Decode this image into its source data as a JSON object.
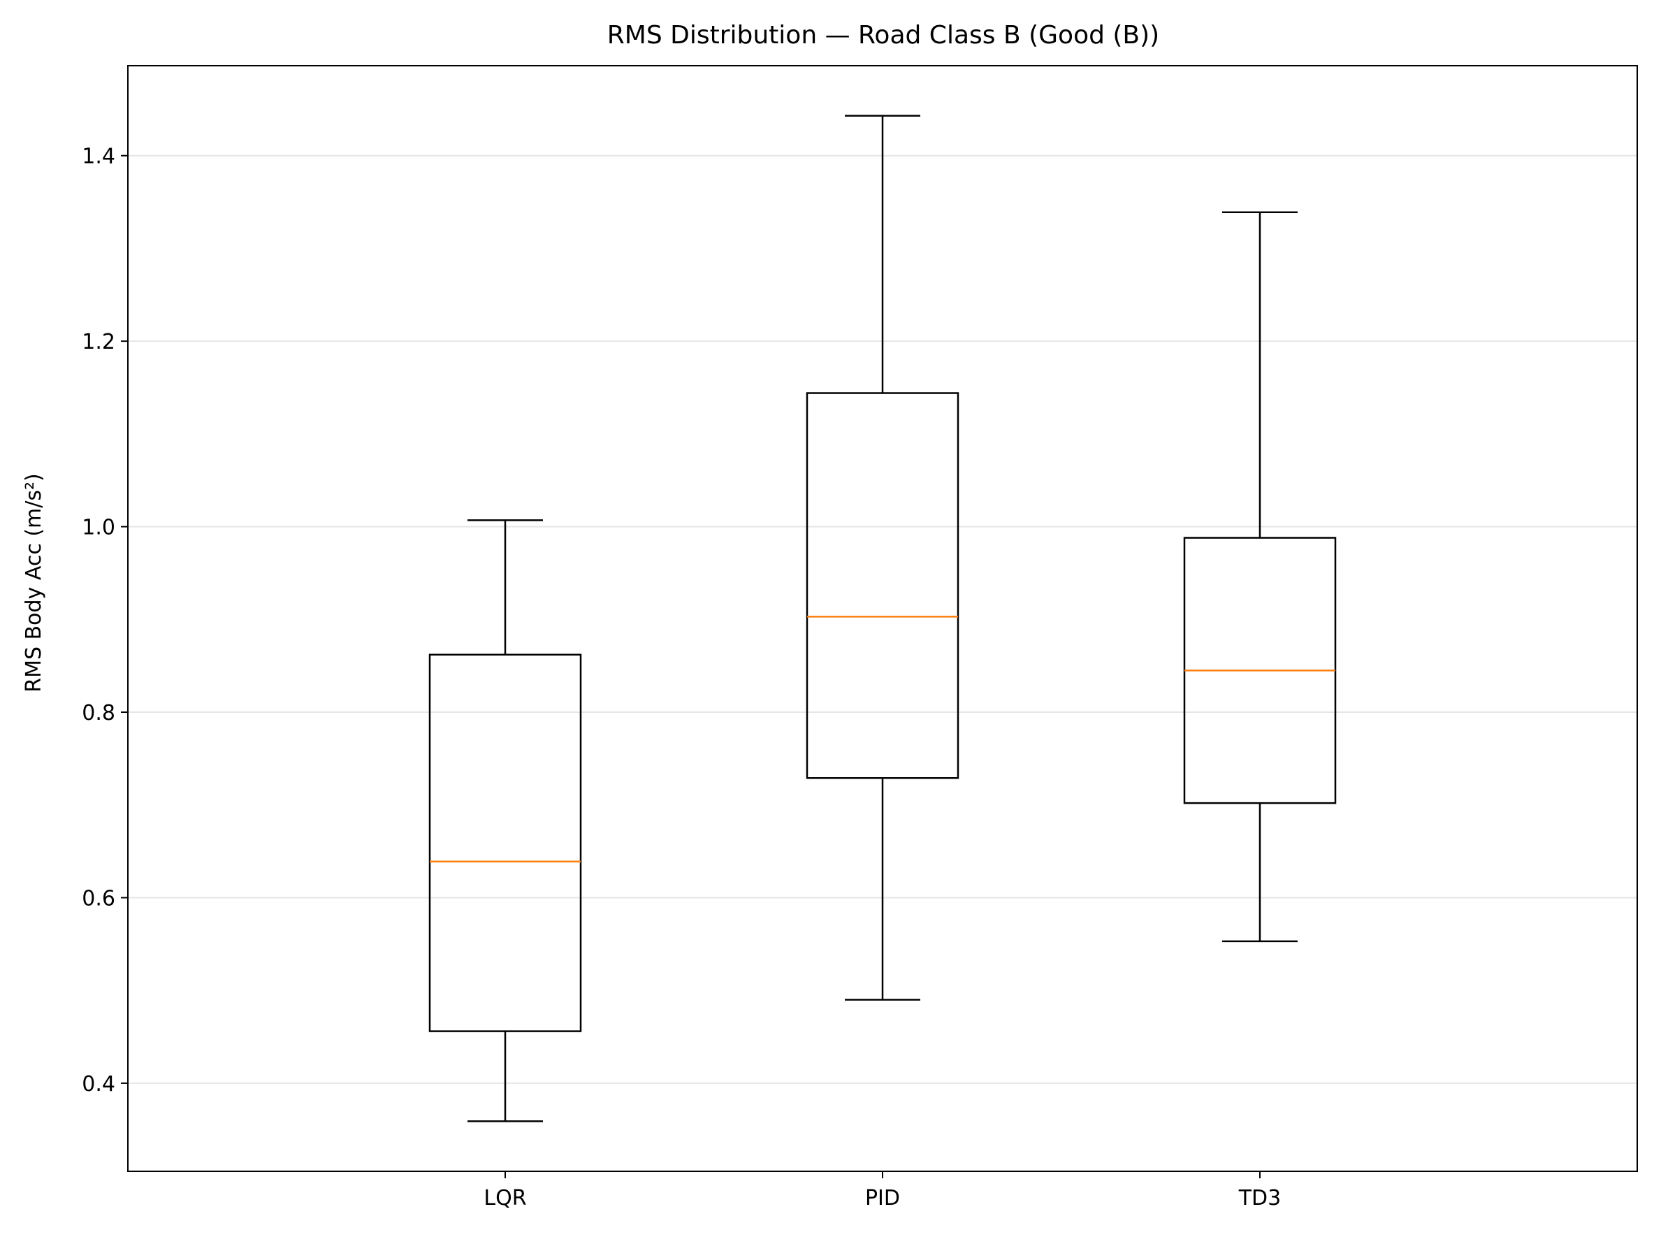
{
  "chart_data": {
    "type": "boxplot",
    "title": "RMS Distribution — Road Class B (Good (B))",
    "xlabel": "",
    "ylabel": "RMS Body Acc (m/s²)",
    "ylim": [
      0.305,
      1.497
    ],
    "yticks": [
      0.4,
      0.6,
      0.8,
      1.0,
      1.2,
      1.4
    ],
    "ytick_labels": [
      "0.4",
      "0.6",
      "0.8",
      "1.0",
      "1.2",
      "1.4"
    ],
    "grid": "y-major",
    "legend": "none",
    "categories": [
      "LQR",
      "PID",
      "TD3"
    ],
    "boxes": [
      {
        "label": "LQR",
        "whisker_low": 0.359,
        "q1": 0.456,
        "median": 0.639,
        "q3": 0.862,
        "whisker_high": 1.007
      },
      {
        "label": "PID",
        "whisker_low": 0.49,
        "q1": 0.729,
        "median": 0.903,
        "q3": 1.144,
        "whisker_high": 1.443
      },
      {
        "label": "TD3",
        "whisker_low": 0.553,
        "q1": 0.702,
        "median": 0.845,
        "q3": 0.988,
        "whisker_high": 1.339
      }
    ],
    "colors": {
      "box": "#000000",
      "median": "#ff7f0e",
      "grid": "#e6e6e6",
      "axes": "#000000"
    }
  }
}
